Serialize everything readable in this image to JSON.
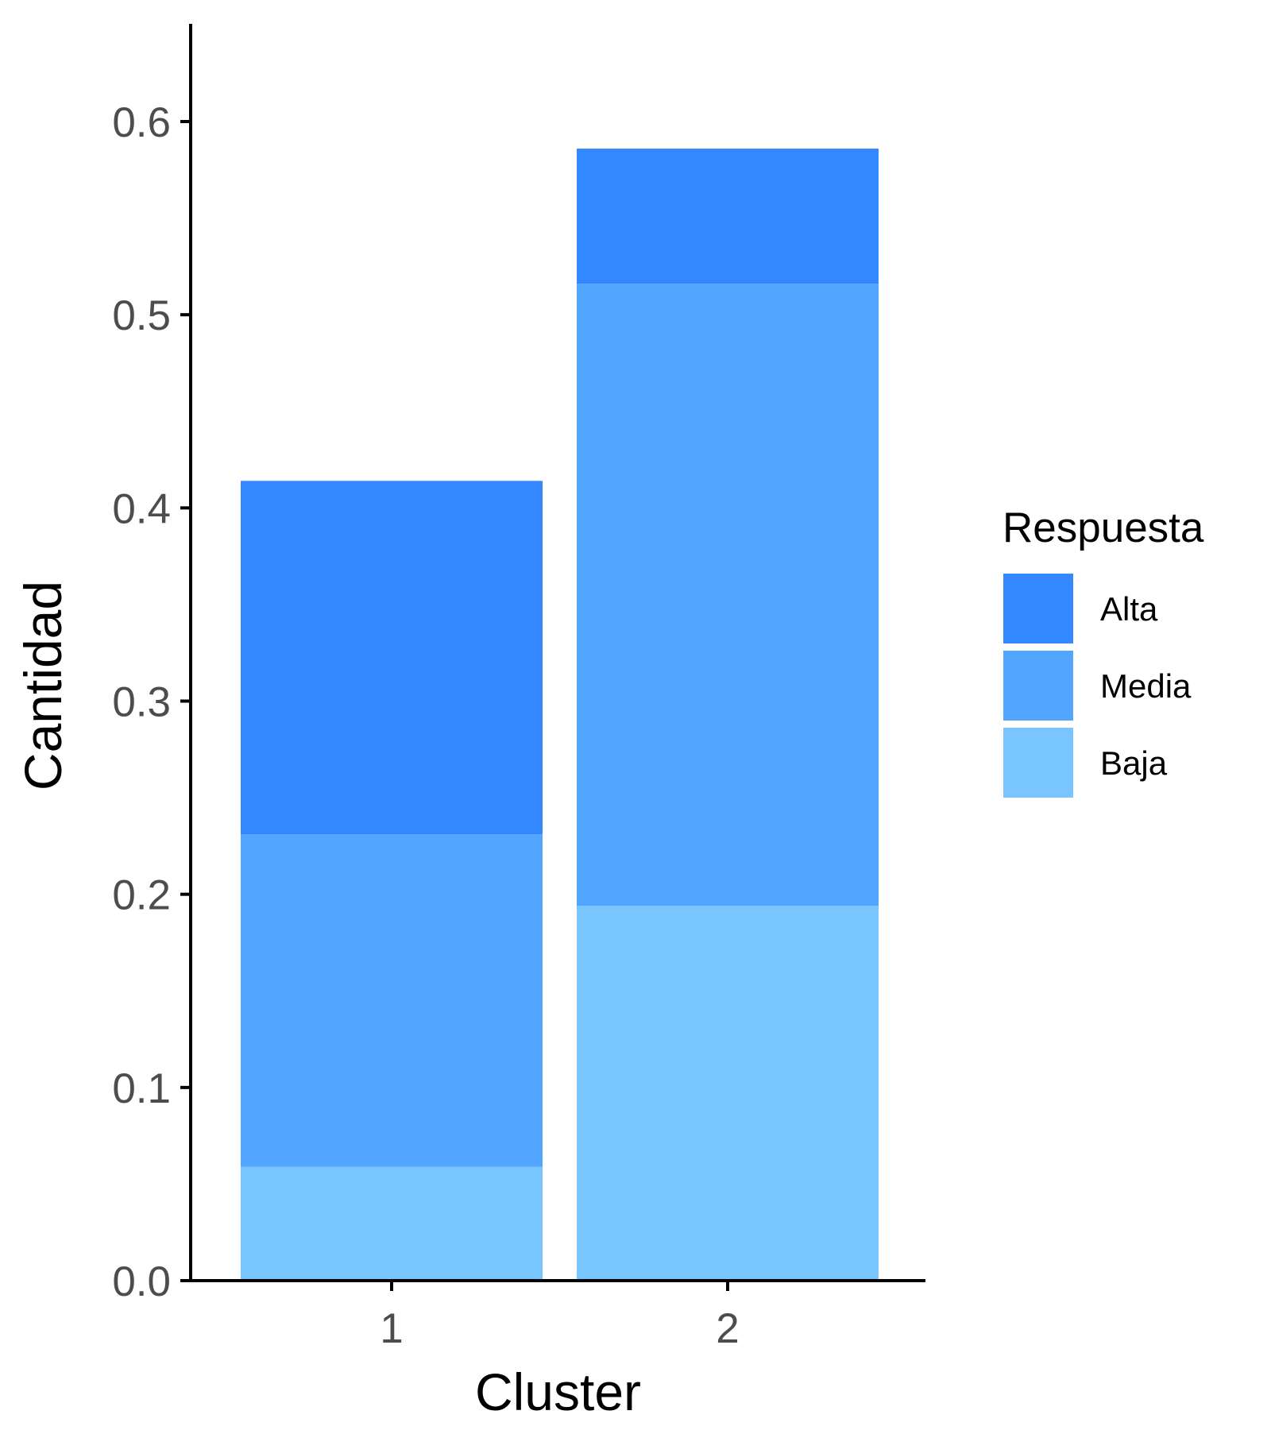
{
  "chart_data": {
    "type": "bar",
    "stacked": true,
    "categories": [
      "1",
      "2"
    ],
    "series": [
      {
        "name": "Baja",
        "values": [
          0.059,
          0.194
        ],
        "color": "#78C5FF"
      },
      {
        "name": "Media",
        "values": [
          0.172,
          0.322
        ],
        "color": "#52A6FF"
      },
      {
        "name": "Alta",
        "values": [
          0.183,
          0.07
        ],
        "color": "#3388FF"
      }
    ],
    "title": "",
    "xlabel": "Cluster",
    "ylabel": "Cantidad",
    "ylim": [
      0,
      0.65
    ],
    "yticks": [
      0.0,
      0.1,
      0.2,
      0.3,
      0.4,
      0.5,
      0.6
    ],
    "ytick_labels": [
      "0.0",
      "0.1",
      "0.2",
      "0.3",
      "0.4",
      "0.5",
      "0.6"
    ],
    "grid": false,
    "legend": {
      "title": "Respuesta",
      "position": "right",
      "order": [
        "Alta",
        "Media",
        "Baja"
      ]
    },
    "axis_color": "#000000",
    "tick_label_color": "#4d4d4d"
  }
}
